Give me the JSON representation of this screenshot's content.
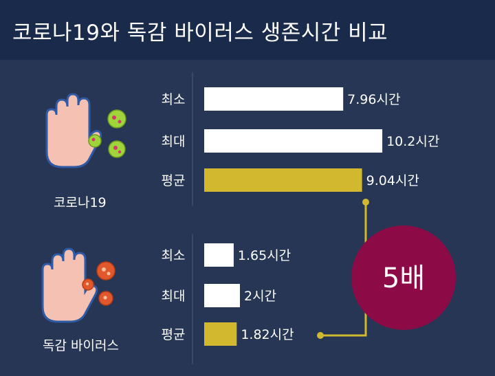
{
  "title": "코로나19와 독감 바이러스 생존시간 비교",
  "colors": {
    "header_bg": "#1a2a4a",
    "panel_bg": "#263654",
    "bar_white": "#ffffff",
    "bar_avg": "#d2b82f",
    "ratio_circle": "#8c0a46",
    "connector": "#d2b82f",
    "virus_covid": "#9fd53a",
    "virus_flu": "#e0582b"
  },
  "groups": [
    {
      "label": "코로나19",
      "icon": "hand-stop-green-virus-icon"
    },
    {
      "label": "독감 바이러스",
      "icon": "hand-stop-red-virus-icon"
    }
  ],
  "chart_data": {
    "type": "bar",
    "orientation": "horizontal",
    "unit": "시간",
    "groups": [
      {
        "name": "코로나19",
        "categories": [
          "최소",
          "최대",
          "평균"
        ],
        "values": [
          7.96,
          10.2,
          9.04
        ],
        "value_labels": [
          "7.96시간",
          "10.2시간",
          "9.04시간"
        ]
      },
      {
        "name": "독감 바이러스",
        "categories": [
          "최소",
          "최대",
          "평균"
        ],
        "values": [
          1.65,
          2,
          1.82
        ],
        "value_labels": [
          "1.65시간",
          "2시간",
          "1.82시간"
        ]
      }
    ],
    "annotation": "5배"
  }
}
